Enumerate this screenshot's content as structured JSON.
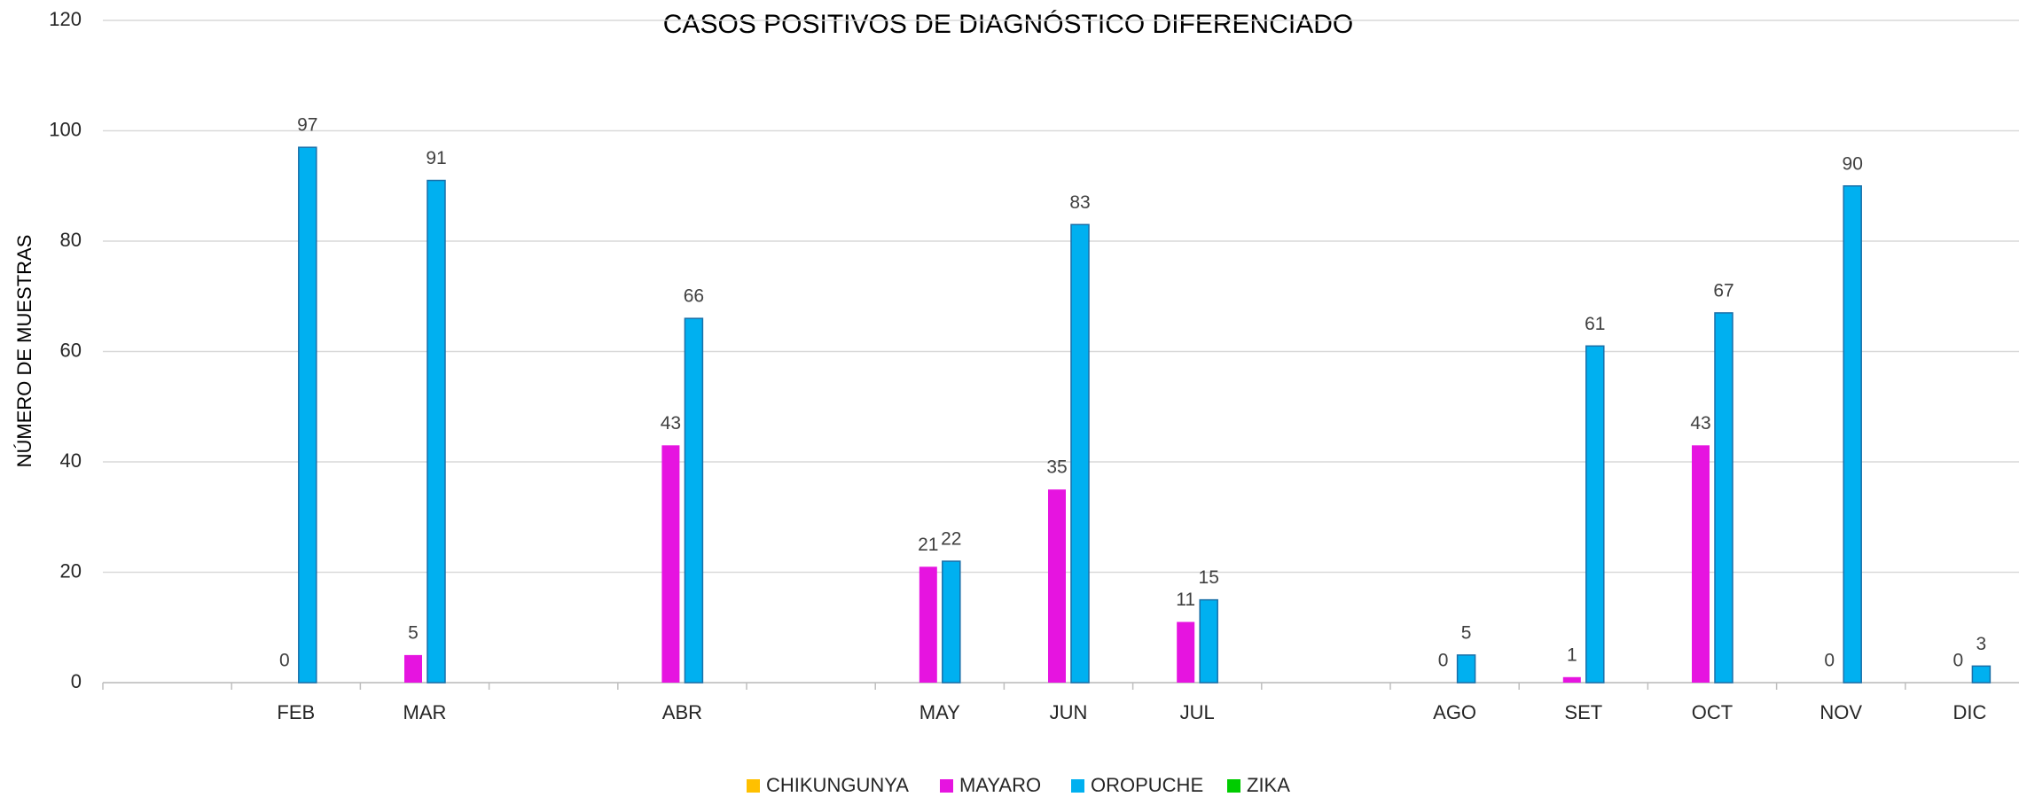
{
  "chart_data": {
    "type": "bar",
    "title": "CASOS POSITIVOS DE DIAGNÓSTICO DIFERENCIADO",
    "y_label": "NÚMERO DE MUESTRAS",
    "categories": [
      null,
      "FEB",
      "MAR",
      null,
      "ABR",
      null,
      "MAY",
      "JUN",
      "JUL",
      null,
      "AGO",
      "SET",
      "OCT",
      "NOV",
      "DIC"
    ],
    "series": [
      {
        "name": "CHIKUNGUNYA",
        "color": "#ffc000",
        "values": [
          null,
          null,
          null,
          null,
          null,
          null,
          null,
          null,
          null,
          null,
          null,
          null,
          null,
          null,
          null
        ]
      },
      {
        "name": "MAYARO",
        "color": "#e614e0",
        "values": [
          null,
          0,
          5,
          null,
          43,
          null,
          21,
          35,
          11,
          null,
          0,
          1,
          43,
          0,
          0
        ]
      },
      {
        "name": "OROPUCHE",
        "color": "#00b0f0",
        "values": [
          null,
          97,
          91,
          null,
          66,
          null,
          22,
          83,
          15,
          null,
          5,
          61,
          67,
          90,
          3
        ]
      },
      {
        "name": "ZIKA",
        "color": "#00cc00",
        "values": [
          null,
          null,
          null,
          null,
          null,
          null,
          null,
          null,
          null,
          null,
          null,
          null,
          null,
          null,
          null
        ]
      }
    ],
    "ylim": [
      0,
      120
    ],
    "yticks": [
      0,
      20,
      40,
      60,
      80,
      100,
      120
    ],
    "grid": true,
    "legend": "bottom",
    "data_labels": true
  }
}
